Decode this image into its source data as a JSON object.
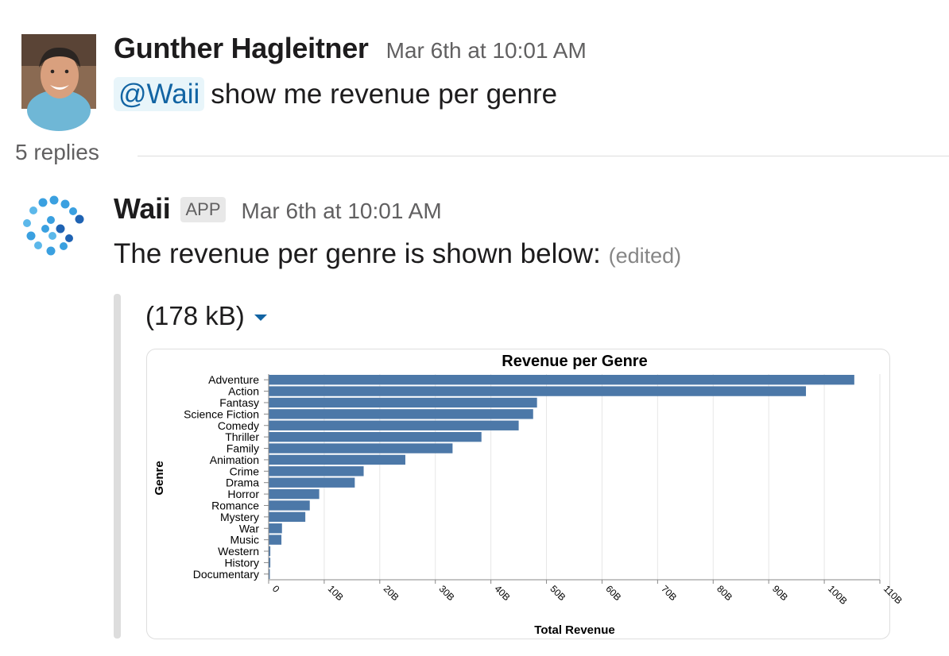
{
  "messages": {
    "first": {
      "author": "Gunther Hagleitner",
      "timestamp": "Mar 6th at 10:01 AM",
      "mention": "@Waii",
      "text": "show me revenue per genre"
    },
    "thread": {
      "replies_label": "5 replies"
    },
    "reply": {
      "author": "Waii",
      "badge": "APP",
      "timestamp": "Mar 6th at 10:01 AM",
      "text": "The revenue per genre is shown below:",
      "edited": "(edited)"
    }
  },
  "attachment": {
    "size_label": "(178 kB)"
  },
  "colors": {
    "bar": "#4c78a8",
    "link": "#1264a3"
  },
  "chart_data": {
    "type": "bar",
    "orientation": "horizontal",
    "title": "Revenue per Genre",
    "xlabel": "Total Revenue",
    "ylabel": "Genre",
    "xlim": [
      0,
      110
    ],
    "x_ticks": [
      "0",
      "10B",
      "20B",
      "30B",
      "40B",
      "50B",
      "60B",
      "70B",
      "80B",
      "90B",
      "100B",
      "110B"
    ],
    "categories": [
      "Adventure",
      "Action",
      "Fantasy",
      "Science Fiction",
      "Comedy",
      "Thriller",
      "Family",
      "Animation",
      "Crime",
      "Drama",
      "Horror",
      "Romance",
      "Mystery",
      "War",
      "Music",
      "Western",
      "History",
      "Documentary"
    ],
    "values": [
      105.4,
      96.7,
      48.3,
      47.6,
      45.0,
      38.3,
      33.1,
      24.6,
      17.1,
      15.5,
      9.1,
      7.4,
      6.6,
      2.4,
      2.3,
      0.3,
      0.3,
      0.2
    ],
    "units": "billions",
    "grid": true
  }
}
